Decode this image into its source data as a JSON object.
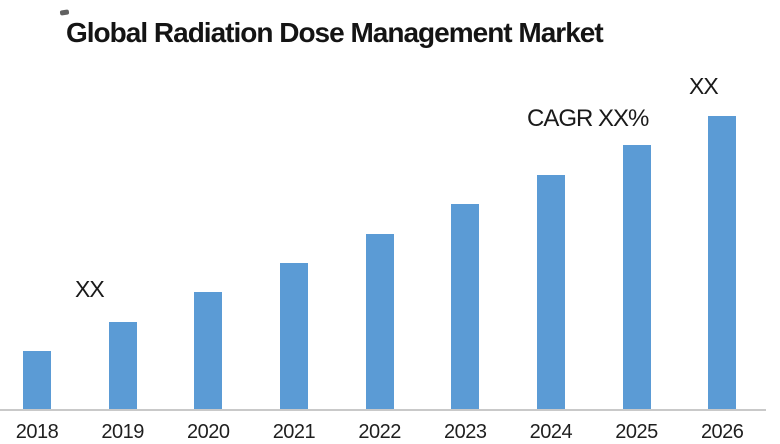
{
  "labels": {
    "title": "Global Radiation Dose Management Market",
    "cagr": "CAGR XX%",
    "xx_left": "XX",
    "xx_right": "XX"
  },
  "chart_data": {
    "type": "bar",
    "title": "Global Radiation Dose Management Market",
    "categories": [
      "2018",
      "2019",
      "2020",
      "2021",
      "2022",
      "2023",
      "2024",
      "2025",
      "2026"
    ],
    "values": [
      2,
      3,
      4,
      5,
      6,
      7,
      8,
      9,
      10
    ],
    "values_note": "relative bar heights estimated from pixels; actual figures masked on chart as 'XX'",
    "bar_color": "#5B9BD5",
    "annotations": [
      {
        "text": "XX",
        "above_category": "2019"
      },
      {
        "text": "CAGR XX%",
        "above_category": "2024"
      },
      {
        "text": "XX",
        "above_category": "2026"
      }
    ],
    "xlabel": "",
    "ylabel": "",
    "y_axis_shown": false,
    "gridlines": false,
    "legend": false,
    "baseline_color": "#c9c9c9",
    "title_color": "#141414",
    "tick_label_color": "#1f1f1f"
  }
}
